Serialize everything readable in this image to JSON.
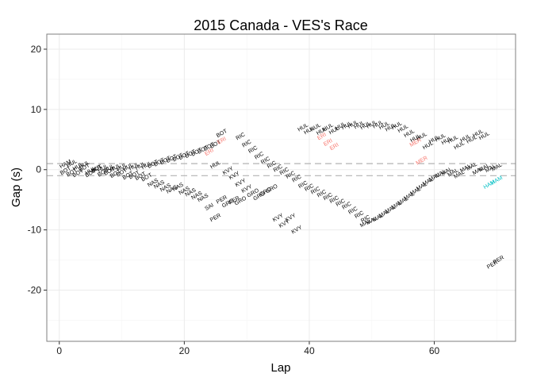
{
  "chart_data": {
    "type": "scatter",
    "title": "2015 Canada - VES's Race",
    "xlabel": "Lap",
    "ylabel": "Gap (s)",
    "xlim": [
      -2,
      73
    ],
    "ylim": [
      -28.5,
      22.5
    ],
    "xticks": [
      0,
      20,
      40,
      60
    ],
    "yticks": [
      -20,
      -10,
      0,
      10,
      20
    ],
    "grid": true,
    "reference_lines": [
      1,
      -1
    ],
    "colors": {
      "default": "#000000",
      "highlight": "#f8766d",
      "teal": "#00bfc4",
      "refline": "#b3b3b3"
    },
    "points": [
      {
        "label": "HAM",
        "x": 1,
        "y": 0.9
      },
      {
        "label": "BOT",
        "x": 1,
        "y": -0.2
      },
      {
        "label": "HUL",
        "x": 2,
        "y": 1.0
      },
      {
        "label": "BOT",
        "x": 2,
        "y": -0.5
      },
      {
        "label": "HUL",
        "x": 3,
        "y": 0.5
      },
      {
        "label": "BOT",
        "x": 3,
        "y": -0.6
      },
      {
        "label": "HUL",
        "x": 4,
        "y": 0.8
      },
      {
        "label": "BOT",
        "x": 4,
        "y": 0.3
      },
      {
        "label": "HUL",
        "x": 5,
        "y": -0.2
      },
      {
        "label": "BOT",
        "x": 5,
        "y": -0.6
      },
      {
        "label": "HUL",
        "x": 6,
        "y": 0.2
      },
      {
        "label": "BOT",
        "x": 6,
        "y": 0.1
      },
      {
        "label": "HUL",
        "x": 7,
        "y": 0.2
      },
      {
        "label": "BOT",
        "x": 7,
        "y": -0.5
      },
      {
        "label": "HUL",
        "x": 8,
        "y": 0.2
      },
      {
        "label": "BOT",
        "x": 8,
        "y": -0.3
      },
      {
        "label": "HUL",
        "x": 9,
        "y": 0.3
      },
      {
        "label": "BOT",
        "x": 9,
        "y": -0.7
      },
      {
        "label": "HUL",
        "x": 10,
        "y": 0.4
      },
      {
        "label": "BOT",
        "x": 10,
        "y": -0.5
      },
      {
        "label": "HUL",
        "x": 11,
        "y": 0.4
      },
      {
        "label": "BOT",
        "x": 11,
        "y": -1.0
      },
      {
        "label": "HUL",
        "x": 12,
        "y": 0.5
      },
      {
        "label": "BOT",
        "x": 12,
        "y": -0.9
      },
      {
        "label": "HUL",
        "x": 13,
        "y": 0.6
      },
      {
        "label": "BOT",
        "x": 13,
        "y": -1.1
      },
      {
        "label": "HUL",
        "x": 14,
        "y": 0.7
      },
      {
        "label": "BOT",
        "x": 14,
        "y": -1.3
      },
      {
        "label": "BOT",
        "x": 15,
        "y": 0.9
      },
      {
        "label": "NAS",
        "x": 15,
        "y": -2.2
      },
      {
        "label": "BOT",
        "x": 16,
        "y": 1.2
      },
      {
        "label": "NAS",
        "x": 16,
        "y": -2.5
      },
      {
        "label": "BOT",
        "x": 17,
        "y": 1.5
      },
      {
        "label": "NAS",
        "x": 17,
        "y": -3.0
      },
      {
        "label": "BOT",
        "x": 18,
        "y": 1.8
      },
      {
        "label": "NAS",
        "x": 18,
        "y": -3.3
      },
      {
        "label": "BOT",
        "x": 19,
        "y": 2.0
      },
      {
        "label": "NAS",
        "x": 19,
        "y": -2.9
      },
      {
        "label": "BOT",
        "x": 20,
        "y": 2.3
      },
      {
        "label": "NAS",
        "x": 20,
        "y": -3.5
      },
      {
        "label": "BOT",
        "x": 21,
        "y": 2.6
      },
      {
        "label": "NAS",
        "x": 21,
        "y": -3.8
      },
      {
        "label": "BOT",
        "x": 22,
        "y": 2.9
      },
      {
        "label": "NAS",
        "x": 22,
        "y": -4.3
      },
      {
        "label": "BOT",
        "x": 23,
        "y": 3.3
      },
      {
        "label": "NAS",
        "x": 23,
        "y": -4.7
      },
      {
        "label": "BOT",
        "x": 24,
        "y": 3.8
      },
      {
        "label": "SAI",
        "x": 24,
        "y": -6.2
      },
      {
        "label": "ERI",
        "x": 24,
        "y": 2.9,
        "highlight": true
      },
      {
        "label": "BOT",
        "x": 25,
        "y": 4.2
      },
      {
        "label": "HUL",
        "x": 25,
        "y": 0.8
      },
      {
        "label": "PER",
        "x": 25,
        "y": -8.0
      },
      {
        "label": "BOT",
        "x": 26,
        "y": 6.0
      },
      {
        "label": "ERI",
        "x": 26,
        "y": 4.8,
        "highlight": true
      },
      {
        "label": "PER",
        "x": 26,
        "y": -5.0
      },
      {
        "label": "KVY",
        "x": 27,
        "y": -0.2
      },
      {
        "label": "GRO",
        "x": 27,
        "y": -5.6
      },
      {
        "label": "KVY",
        "x": 28,
        "y": -1.0
      },
      {
        "label": "PER",
        "x": 28,
        "y": -5.1
      },
      {
        "label": "RIC",
        "x": 29,
        "y": 5.5
      },
      {
        "label": "KVY",
        "x": 29,
        "y": -2.2
      },
      {
        "label": "GRO",
        "x": 29,
        "y": -5.2
      },
      {
        "label": "RIC",
        "x": 30,
        "y": 4.3
      },
      {
        "label": "KVY",
        "x": 30,
        "y": -3.2
      },
      {
        "label": "RIC",
        "x": 31,
        "y": 3.3
      },
      {
        "label": "GRO",
        "x": 31,
        "y": -3.9
      },
      {
        "label": "RIC",
        "x": 32,
        "y": 2.3
      },
      {
        "label": "GRO",
        "x": 32,
        "y": -4.4
      },
      {
        "label": "RIC",
        "x": 33,
        "y": 1.5
      },
      {
        "label": "GRO",
        "x": 33,
        "y": -3.7
      },
      {
        "label": "RIC",
        "x": 34,
        "y": 0.8
      },
      {
        "label": "GRO",
        "x": 34,
        "y": -3.2
      },
      {
        "label": "RIC",
        "x": 35,
        "y": 0.2
      },
      {
        "label": "KVY",
        "x": 35,
        "y": -8.0
      },
      {
        "label": "RIC",
        "x": 36,
        "y": -0.3
      },
      {
        "label": "KVY",
        "x": 36,
        "y": -9.0
      },
      {
        "label": "RIC",
        "x": 37,
        "y": -0.9
      },
      {
        "label": "KVY",
        "x": 37,
        "y": -8.0
      },
      {
        "label": "RIC",
        "x": 38,
        "y": -1.5
      },
      {
        "label": "KVY",
        "x": 38,
        "y": -10.0
      },
      {
        "label": "HUL",
        "x": 39,
        "y": 7.0
      },
      {
        "label": "RIC",
        "x": 39,
        "y": -2.5
      },
      {
        "label": "HUL",
        "x": 40,
        "y": 6.5
      },
      {
        "label": "RIC",
        "x": 40,
        "y": -3.0
      },
      {
        "label": "HUL",
        "x": 41,
        "y": 7.0
      },
      {
        "label": "RIC",
        "x": 41,
        "y": -3.5
      },
      {
        "label": "HUL",
        "x": 42,
        "y": 6.4
      },
      {
        "label": "RIC",
        "x": 42,
        "y": -4.0
      },
      {
        "label": "ERI",
        "x": 42,
        "y": 5.5,
        "highlight": true
      },
      {
        "label": "HUL",
        "x": 43,
        "y": 7.0
      },
      {
        "label": "RIC",
        "x": 43,
        "y": -4.5
      },
      {
        "label": "ERI",
        "x": 43,
        "y": 4.5,
        "highlight": true
      },
      {
        "label": "HUL",
        "x": 44,
        "y": 6.5
      },
      {
        "label": "RIC",
        "x": 44,
        "y": -5.0
      },
      {
        "label": "ERI",
        "x": 44,
        "y": 3.8,
        "highlight": true
      },
      {
        "label": "HUL",
        "x": 45,
        "y": 7.2
      },
      {
        "label": "RIC",
        "x": 45,
        "y": -5.5
      },
      {
        "label": "HUL",
        "x": 46,
        "y": 7.3
      },
      {
        "label": "RIC",
        "x": 46,
        "y": -6.0
      },
      {
        "label": "HUL",
        "x": 47,
        "y": 7.5
      },
      {
        "label": "RIC",
        "x": 47,
        "y": -6.8
      },
      {
        "label": "HUL",
        "x": 48,
        "y": 7.4
      },
      {
        "label": "RIC",
        "x": 48,
        "y": -7.5
      },
      {
        "label": "HUL",
        "x": 49,
        "y": 7.3
      },
      {
        "label": "RIC",
        "x": 49,
        "y": -8.2
      },
      {
        "label": "MAL",
        "x": 49,
        "y": -8.9
      },
      {
        "label": "HUL",
        "x": 50,
        "y": 7.5
      },
      {
        "label": "MAL",
        "x": 50,
        "y": -8.5
      },
      {
        "label": "HUL",
        "x": 51,
        "y": 7.5
      },
      {
        "label": "MAL",
        "x": 51,
        "y": -8.0
      },
      {
        "label": "HUL",
        "x": 52,
        "y": 7.3
      },
      {
        "label": "MAL",
        "x": 52,
        "y": -7.3
      },
      {
        "label": "HUL",
        "x": 53,
        "y": 7.0
      },
      {
        "label": "MAL",
        "x": 53,
        "y": -6.6
      },
      {
        "label": "HUL",
        "x": 54,
        "y": 7.3
      },
      {
        "label": "MAL",
        "x": 54,
        "y": -5.9
      },
      {
        "label": "HUL",
        "x": 55,
        "y": 6.8
      },
      {
        "label": "MAL",
        "x": 55,
        "y": -5.2
      },
      {
        "label": "HUL",
        "x": 56,
        "y": 6.0
      },
      {
        "label": "MAL",
        "x": 56,
        "y": -4.4
      },
      {
        "label": "HUL",
        "x": 57,
        "y": 5.2
      },
      {
        "label": "MAL",
        "x": 57,
        "y": -3.6
      },
      {
        "label": "MER",
        "x": 57,
        "y": 4.5,
        "highlight": true
      },
      {
        "label": "HUL",
        "x": 58,
        "y": 5.5
      },
      {
        "label": "MAL",
        "x": 58,
        "y": -2.8
      },
      {
        "label": "MER",
        "x": 58,
        "y": 1.5,
        "highlight": true
      },
      {
        "label": "HUL",
        "x": 59,
        "y": 4.0
      },
      {
        "label": "MAL",
        "x": 59,
        "y": -2.0
      },
      {
        "label": "HUL",
        "x": 60,
        "y": 5.0
      },
      {
        "label": "MAL",
        "x": 60,
        "y": -1.3
      },
      {
        "label": "HUL",
        "x": 61,
        "y": 5.3
      },
      {
        "label": "MAL",
        "x": 61,
        "y": -0.7
      },
      {
        "label": "HUL",
        "x": 62,
        "y": 4.8
      },
      {
        "label": "MAL",
        "x": 62,
        "y": -0.3
      },
      {
        "label": "HUL",
        "x": 63,
        "y": 5.0
      },
      {
        "label": "MAL",
        "x": 63,
        "y": -0.5
      },
      {
        "label": "HUL",
        "x": 64,
        "y": 4.0
      },
      {
        "label": "MAL",
        "x": 64,
        "y": -0.8
      },
      {
        "label": "HUL",
        "x": 65,
        "y": 5.2
      },
      {
        "label": "MAL",
        "x": 65,
        "y": 0.2
      },
      {
        "label": "HUL",
        "x": 66,
        "y": 5.0
      },
      {
        "label": "MAL",
        "x": 66,
        "y": 0.5
      },
      {
        "label": "HUL",
        "x": 67,
        "y": 6.0
      },
      {
        "label": "MAL",
        "x": 67,
        "y": -0.2
      },
      {
        "label": "HUL",
        "x": 68,
        "y": 5.6
      },
      {
        "label": "MAL",
        "x": 68,
        "y": 0.3
      },
      {
        "label": "MAL",
        "x": 69,
        "y": 0.2
      },
      {
        "label": "MAL",
        "x": 70,
        "y": 0.4
      },
      {
        "label": "HAM",
        "x": 68.8,
        "y": -2.5,
        "teal": true
      },
      {
        "label": "HAM",
        "x": 70,
        "y": -1.8,
        "teal": true
      },
      {
        "label": "PER",
        "x": 69.3,
        "y": -15.8
      },
      {
        "label": "PER",
        "x": 70.3,
        "y": -15.0
      }
    ]
  }
}
